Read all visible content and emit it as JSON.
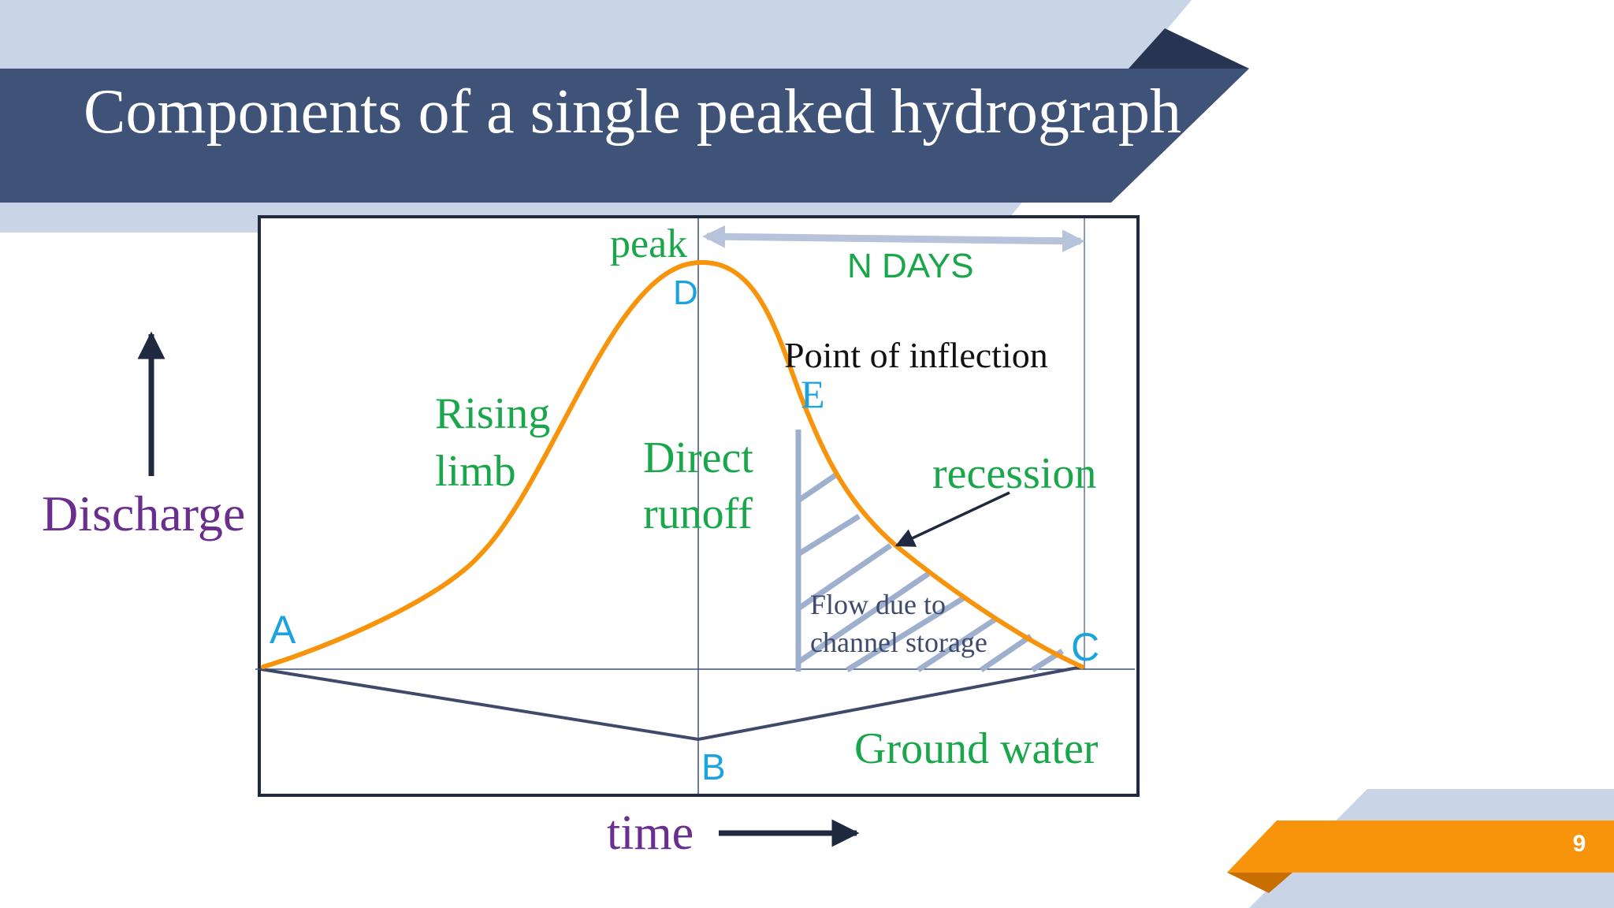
{
  "title": "Components of a single peaked hydrograph",
  "page_number": "9",
  "colors": {
    "header_navy": "#3f5277",
    "header_light": "#c9d4e6",
    "accent_orange": "#f7940c",
    "curve": "#f7940c",
    "label_green": "#1aa64a",
    "point_cyan": "#1aa3dd",
    "axis_purple": "#6a2e8f",
    "hatch": "#9fb0cf",
    "frame": "#1f2940"
  },
  "diagram": {
    "axes": {
      "y_label": "Discharge",
      "x_label": "time"
    },
    "labels": {
      "peak": "peak",
      "n_days": "N DAYS",
      "inflection": "Point of inflection",
      "rising_1": "Rising",
      "rising_2": "limb",
      "direct_1": "Direct",
      "direct_2": "runoff",
      "recession": "recession",
      "storage_1": "Flow due to",
      "storage_2": "channel storage",
      "ground_water": "Ground water"
    },
    "points": {
      "a": "A",
      "b": "B",
      "c": "C",
      "d": "D",
      "e": "E"
    }
  }
}
